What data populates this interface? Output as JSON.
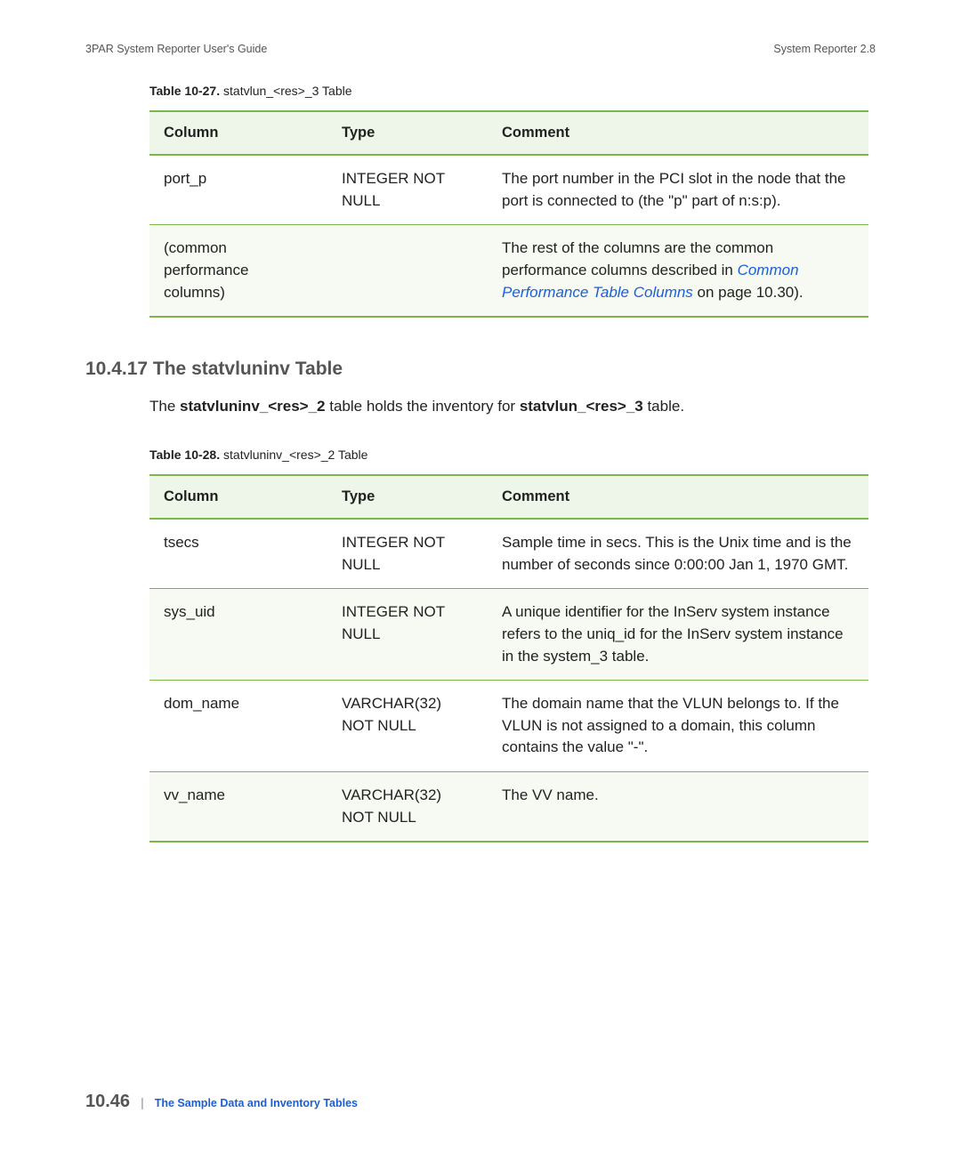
{
  "header": {
    "left": "3PAR System Reporter User's Guide",
    "right": "System Reporter 2.8"
  },
  "table1": {
    "caption_bold": "Table 10-27.",
    "caption_rest": "  statvlun_<res>_3 Table",
    "headers": {
      "col1": "Column",
      "col2": "Type",
      "col3": "Comment"
    },
    "rows": [
      {
        "column": "port_p",
        "type": "INTEGER NOT NULL",
        "comment_plain": "The port number in the PCI slot in the node that the port is connected to (the \"p\" part of n:s:p)."
      },
      {
        "column": "(common performance columns)",
        "type": "",
        "comment_before": "The rest of the columns are the common performance columns described in ",
        "comment_link": "Common Performance Table Columns",
        "comment_after": " on page 10.30)."
      }
    ]
  },
  "section": {
    "heading": "10.4.17 The statvluninv Table",
    "para_before": "The ",
    "para_b1": "statvluninv_<res>_2",
    "para_mid": " table holds the inventory for ",
    "para_b2": "statvlun_<res>_3",
    "para_after": " table."
  },
  "table2": {
    "caption_bold": "Table 10-28.",
    "caption_rest": "  statvluninv_<res>_2 Table",
    "headers": {
      "col1": "Column",
      "col2": "Type",
      "col3": "Comment"
    },
    "rows": [
      {
        "column": "tsecs",
        "type": "INTEGER NOT NULL",
        "comment": "Sample time in secs. This is the Unix time and is the number of seconds since 0:00:00 Jan 1, 1970 GMT."
      },
      {
        "column": "sys_uid",
        "type": "INTEGER NOT NULL",
        "comment": "A unique identifier for the InServ system instance refers to the uniq_id for the InServ system instance in the system_3 table."
      },
      {
        "column": "dom_name",
        "type": "VARCHAR(32) NOT NULL",
        "comment": "The domain name that the VLUN belongs to. If the VLUN is not assigned to a domain, this column contains the value \"-\"."
      },
      {
        "column": "vv_name",
        "type": "VARCHAR(32) NOT NULL",
        "comment": "The VV name."
      }
    ]
  },
  "footer": {
    "page": "10.46",
    "text": "The Sample Data and Inventory Tables"
  }
}
